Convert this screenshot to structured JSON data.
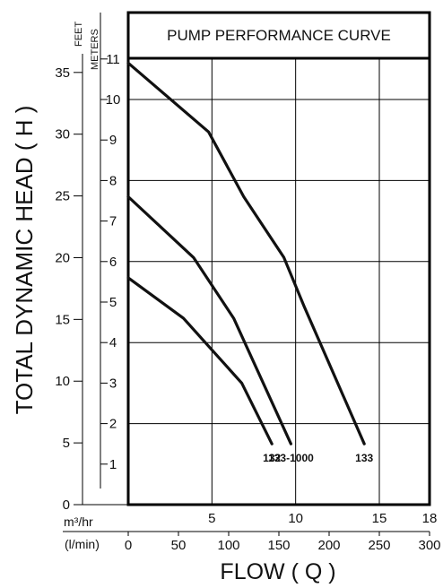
{
  "chart_data": {
    "type": "line",
    "title": "PUMP PERFORMANCE CURVE",
    "ylabel": "TOTAL  DYNAMIC  HEAD ( H )",
    "xlabel": "FLOW ( Q )",
    "y_units": {
      "feet": "FEET",
      "meters": "METERS"
    },
    "x_units": {
      "m3hr": "m³/hr",
      "lmin": "(l/min)"
    },
    "feet_ticks": [
      "0",
      "5",
      "10",
      "15",
      "20",
      "25",
      "30",
      "35"
    ],
    "meter_ticks": [
      "1",
      "2",
      "3",
      "4",
      "5",
      "6",
      "7",
      "8",
      "9",
      "10",
      "11"
    ],
    "m3hr_ticks": [
      "5",
      "10",
      "15",
      "18"
    ],
    "lmin_ticks": [
      "0",
      "50",
      "100",
      "150",
      "200",
      "250",
      "300"
    ],
    "xlim_lmin": [
      0,
      300
    ],
    "ylim_meters": [
      0,
      11
    ],
    "grid": true,
    "series": [
      {
        "name": "132",
        "x": [
          0,
          55,
          113,
          143
        ],
        "y": [
          5.6,
          4.6,
          3.0,
          1.5
        ]
      },
      {
        "name": "133-1000",
        "x": [
          0,
          65,
          105,
          162
        ],
        "y": [
          7.6,
          6.1,
          4.6,
          1.5
        ]
      },
      {
        "name": "133",
        "x": [
          0,
          80,
          115,
          155,
          175,
          235
        ],
        "y": [
          10.9,
          9.2,
          7.6,
          6.1,
          4.9,
          1.5
        ]
      }
    ]
  }
}
